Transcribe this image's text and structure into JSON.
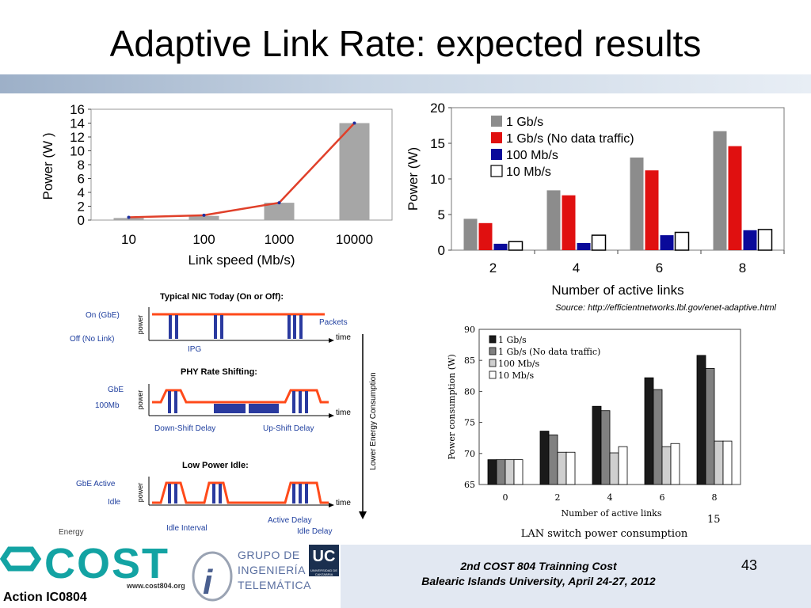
{
  "slide": {
    "title": "Adaptive Link Rate: expected results",
    "page_number": "43",
    "footer_line1": "2nd  COST 804 Trainning Cost",
    "footer_line2": "Balearic Islands University, April 24-27, 2012",
    "source_note": "Source: http://efficientnetworks.lbl.gov/enet-adaptive.html",
    "action_label": "Action IC0804",
    "cost_url": "www.cost804.org",
    "cost_logo_text": "COST",
    "group_logo_lines": [
      "GRUPO DE",
      "INGENIERÍA",
      "TELEMÁTICA"
    ],
    "uc_logo_text": "UC",
    "uc_logo_sub": "UNIVERSIDAD DE CANTABRIA"
  },
  "chart_data": [
    {
      "type": "bar",
      "categories": [
        "10",
        "100",
        "1000",
        "10000"
      ],
      "values": [
        0.3,
        0.6,
        2.5,
        14
      ],
      "line_values": [
        0.4,
        0.7,
        2.5,
        14
      ],
      "xlabel": "Link speed (Mb/s)",
      "ylabel": "Power (W )",
      "ylim": [
        0,
        16
      ],
      "yticks": [
        "0",
        "2",
        "4",
        "6",
        "8",
        "10",
        "12",
        "14",
        "16"
      ],
      "colors": {
        "bar": "#a6a6a6",
        "line": "#e0402a",
        "marker": "#1f2f9f"
      }
    },
    {
      "type": "bar",
      "categories": [
        "2",
        "4",
        "6",
        "8"
      ],
      "series": [
        {
          "name": "1 Gb/s",
          "values": [
            4.4,
            8.4,
            13.0,
            16.7
          ],
          "color": "#8c8c8c"
        },
        {
          "name": "1 Gb/s (No data traffic)",
          "values": [
            3.8,
            7.7,
            11.2,
            14.6
          ],
          "color": "#e01010"
        },
        {
          "name": "100 Mb/s",
          "values": [
            0.9,
            1.0,
            2.1,
            2.8
          ],
          "color": "#0a0a9a"
        },
        {
          "name": "10 Mb/s",
          "values": [
            1.2,
            2.1,
            2.5,
            2.9
          ],
          "color": "#ffffff"
        }
      ],
      "xlabel": "Number of active links",
      "ylabel": "Power (W)",
      "ylim": [
        0,
        20
      ],
      "yticks": [
        "0",
        "5",
        "10",
        "15",
        "20"
      ],
      "legend": "top-left"
    },
    {
      "type": "diagram",
      "title": "Typical NIC Today (On or Off):",
      "panels": [
        {
          "heading": "Typical NIC Today (On or Off):",
          "levels": [
            "On (GbE)",
            "Off (No Link)"
          ],
          "labels": [
            "Packets",
            "IPG"
          ]
        },
        {
          "heading": "PHY Rate Shifting:",
          "levels": [
            "GbE",
            "100Mb"
          ],
          "labels": [
            "Down-Shift Delay",
            "Up-Shift Delay"
          ]
        },
        {
          "heading": "Low Power Idle:",
          "levels": [
            "GbE Active",
            "Idle"
          ],
          "labels": [
            "Idle Interval",
            "Active Delay",
            "Idle Delay"
          ]
        }
      ],
      "axis_y": "power",
      "axis_x": "time",
      "side_label": "Lower Energy Consumption",
      "corner_label": "Energy"
    },
    {
      "type": "bar",
      "categories": [
        "0",
        "2",
        "4",
        "6",
        "8"
      ],
      "series": [
        {
          "name": "1 Gb/s",
          "values": [
            69,
            73.6,
            77.6,
            82.2,
            85.8
          ],
          "color": "#1a1a1a"
        },
        {
          "name": "1 Gb/s (No data traffic)",
          "values": [
            69,
            73.0,
            76.9,
            80.3,
            83.7
          ],
          "color": "#808080"
        },
        {
          "name": "100 Mb/s",
          "values": [
            69,
            70.2,
            70.1,
            71.1,
            72.0
          ],
          "color": "#cfcfcf"
        },
        {
          "name": "10 Mb/s",
          "values": [
            69,
            70.2,
            71.1,
            71.6,
            72.0
          ],
          "color": "#ffffff"
        }
      ],
      "xlabel": "Number of active links",
      "ylabel": "Power consumption (W)",
      "caption": "LAN switch power consumption",
      "caption_number": "15",
      "ylim": [
        65,
        90
      ],
      "yticks": [
        "65",
        "70",
        "75",
        "80",
        "85",
        "90"
      ],
      "legend": "top-left"
    }
  ]
}
